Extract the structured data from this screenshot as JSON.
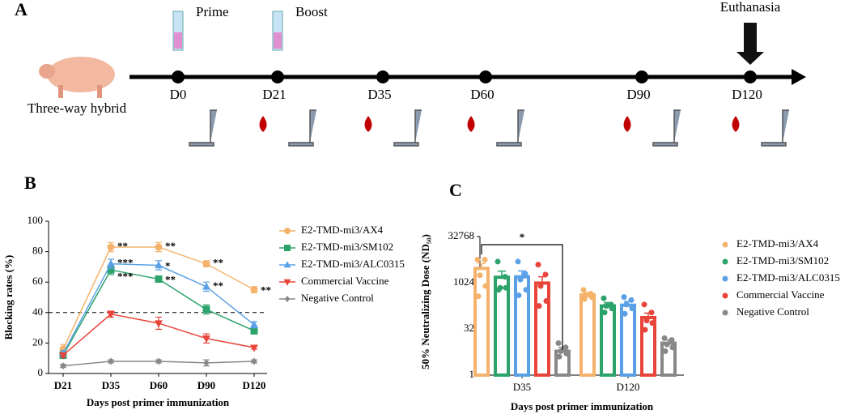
{
  "panel_a": {
    "label": "A",
    "subject": "Three-way hybrid",
    "timepoints": [
      "D0",
      "D21",
      "D35",
      "D60",
      "D90",
      "D120"
    ],
    "events": [
      "Prime",
      "Boost",
      "Euthanasia"
    ]
  },
  "chart_data": [
    {
      "type": "line",
      "panel": "B",
      "x_label": "Days post primer immunization",
      "y_label": "Blocking rates (%)",
      "categories": [
        "D21",
        "D35",
        "D60",
        "D90",
        "D120"
      ],
      "ylim": [
        0,
        100
      ],
      "yticks": [
        0,
        20,
        40,
        60,
        80,
        100
      ],
      "hline": 40,
      "series": [
        {
          "name": "E2-TMD-mi3/AX4",
          "color": "#f4b26b",
          "marker": "circle",
          "values": [
            16,
            83,
            83,
            72,
            55
          ],
          "errors": [
            3,
            3,
            3,
            2,
            2
          ]
        },
        {
          "name": "E2-TMD-mi3/SM102",
          "color": "#2ca36b",
          "marker": "square",
          "values": [
            12,
            68,
            62,
            42,
            28
          ],
          "errors": [
            2,
            3,
            2,
            3,
            2
          ]
        },
        {
          "name": "E2-TMD-mi3/ALC0315",
          "color": "#5aa0e6",
          "marker": "triangle-up",
          "values": [
            13,
            72,
            71,
            57,
            32
          ],
          "errors": [
            2,
            3,
            3,
            3,
            2
          ]
        },
        {
          "name": "Commercial Vaccine",
          "color": "#e8443a",
          "marker": "triangle-down",
          "values": [
            12,
            39,
            33,
            23,
            17
          ],
          "errors": [
            1,
            2,
            4,
            3,
            1
          ]
        },
        {
          "name": "Negative Control",
          "color": "#888888",
          "marker": "diamond",
          "values": [
            5,
            8,
            8,
            7,
            8
          ],
          "errors": [
            1,
            1,
            1,
            2,
            1
          ]
        }
      ],
      "annotations": [
        {
          "text": "**",
          "x": "D35",
          "y": 83
        },
        {
          "text": "***",
          "x": "D35",
          "y": 72
        },
        {
          "text": "***",
          "x": "D35",
          "y": 63
        },
        {
          "text": "**",
          "x": "D60",
          "y": 83
        },
        {
          "text": "*",
          "x": "D60",
          "y": 70
        },
        {
          "text": "**",
          "x": "D60",
          "y": 61
        },
        {
          "text": "**",
          "x": "D90",
          "y": 72
        },
        {
          "text": "**",
          "x": "D90",
          "y": 57
        },
        {
          "text": "**",
          "x": "D120",
          "y": 54
        }
      ]
    },
    {
      "type": "bar",
      "panel": "C",
      "x_label": "Days post primer immunization",
      "y_label": "50% Neutralizing Dose (ND₅₀)",
      "yscale": "log",
      "categories": [
        "D35",
        "D120"
      ],
      "ylim": [
        1,
        32768
      ],
      "yticks": [
        1,
        32,
        1024,
        32768
      ],
      "series": [
        {
          "name": "E2-TMD-mi3/AX4",
          "color": "#f4b26b",
          "values": [
            3000,
            410
          ],
          "errors": [
            1300,
            80
          ],
          "points": [
            [
              5800,
              5800,
              1800,
              800,
              370
            ],
            [
              600,
              450,
              400,
              350,
              300
            ]
          ]
        },
        {
          "name": "E2-TMD-mi3/SM102",
          "color": "#2ca36b",
          "values": [
            1550,
            180
          ],
          "errors": [
            900,
            50
          ],
          "points": [
            [
              5000,
              1600,
              700,
              700,
              600
            ],
            [
              320,
              200,
              180,
              150,
              110
            ]
          ]
        },
        {
          "name": "E2-TMD-mi3/ALC0315",
          "color": "#5aa0e6",
          "values": [
            1600,
            190
          ],
          "errors": [
            900,
            60
          ],
          "points": [
            [
              5000,
              2000,
              1300,
              600,
              400
            ],
            [
              350,
              280,
              200,
              150,
              100
            ]
          ]
        },
        {
          "name": "Commercial Vaccine",
          "color": "#e8443a",
          "values": [
            1000,
            75
          ],
          "errors": [
            600,
            30
          ],
          "points": [
            [
              4000,
              1900,
              800,
              260,
              180
            ],
            [
              200,
              110,
              60,
              50,
              30
            ]
          ]
        },
        {
          "name": "Negative Control",
          "color": "#888888",
          "values": [
            6,
            11
          ],
          "errors": [
            2,
            3
          ],
          "points": [
            [
              11,
              8,
              6,
              5,
              4
            ],
            [
              16,
              14,
              10,
              8,
              6
            ]
          ]
        }
      ],
      "annotations": [
        {
          "text": "*"
        }
      ]
    }
  ]
}
